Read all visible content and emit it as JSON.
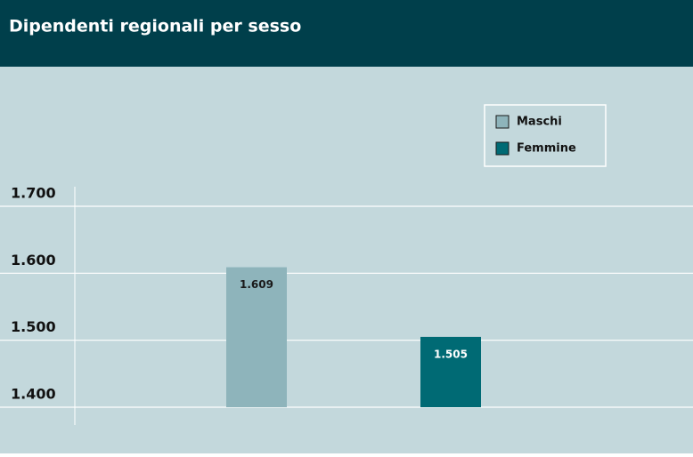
{
  "chart_data": {
    "type": "bar",
    "title": "Dipendenti regionali per sesso",
    "series": [
      {
        "name": "Maschi",
        "color": "#8eb4bb",
        "values": [
          1609
        ],
        "value_labels": [
          "1.609"
        ]
      },
      {
        "name": "Femmine",
        "color": "#006a74",
        "values": [
          1505
        ],
        "value_labels": [
          "1.505"
        ]
      }
    ],
    "ylim": [
      1400,
      1700
    ],
    "yticks": [
      {
        "value": 1400,
        "label": "1.400"
      },
      {
        "value": 1500,
        "label": "1.500"
      },
      {
        "value": 1600,
        "label": "1.600"
      },
      {
        "value": 1700,
        "label": "1.700"
      }
    ],
    "grid": true,
    "legend": "top-right"
  }
}
